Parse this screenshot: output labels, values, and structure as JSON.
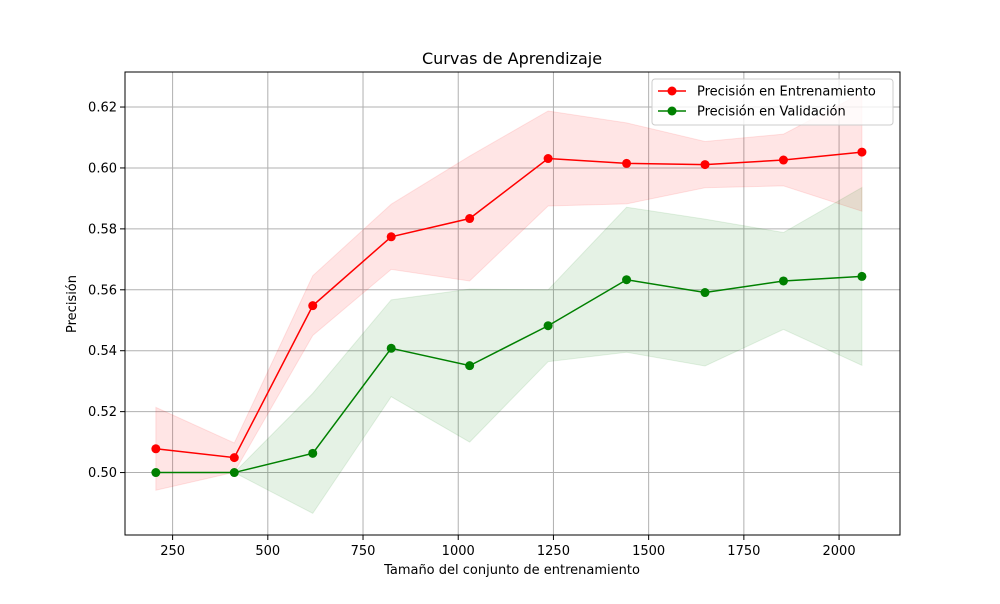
{
  "chart_data": {
    "type": "line",
    "title": "Curvas de Aprendizaje",
    "xlabel": "Tamaño del conjunto de entrenamiento",
    "ylabel": "Precisión",
    "xlim": [
      125,
      2160
    ],
    "ylim": [
      0.4795,
      0.6315
    ],
    "xticks": [
      250,
      500,
      750,
      1000,
      1250,
      1500,
      1750,
      2000
    ],
    "yticks": [
      0.5,
      0.52,
      0.54,
      0.56,
      0.58,
      0.6,
      0.62
    ],
    "grid": true,
    "legend_position": "top-right",
    "x": [
      206,
      412,
      618,
      824,
      1030,
      1236,
      1442,
      1648,
      1854,
      2060
    ],
    "series": [
      {
        "name": "Precisión en Entrenamiento",
        "color": "#ff0000",
        "band_color": "#ff0000",
        "values": [
          0.5078,
          0.5049,
          0.5548,
          0.5774,
          0.5834,
          0.6031,
          0.6015,
          0.6011,
          0.6026,
          0.6052
        ],
        "upper": [
          0.5214,
          0.5097,
          0.5646,
          0.5881,
          0.6039,
          0.6187,
          0.6148,
          0.6087,
          0.6111,
          0.6246
        ],
        "lower": [
          0.4942,
          0.5001,
          0.545,
          0.5667,
          0.5629,
          0.5875,
          0.5882,
          0.5935,
          0.5941,
          0.5858
        ]
      },
      {
        "name": "Precisión en Validación",
        "color": "#008000",
        "band_color": "#008000",
        "values": [
          0.5,
          0.5,
          0.5063,
          0.5408,
          0.5351,
          0.5482,
          0.5633,
          0.5591,
          0.5629,
          0.5644
        ],
        "upper": [
          0.5,
          0.5,
          0.526,
          0.5567,
          0.5602,
          0.56,
          0.5871,
          0.5832,
          0.5788,
          0.5936
        ],
        "lower": [
          0.5,
          0.5,
          0.4866,
          0.5249,
          0.51,
          0.5364,
          0.5395,
          0.535,
          0.547,
          0.5352
        ]
      }
    ]
  }
}
